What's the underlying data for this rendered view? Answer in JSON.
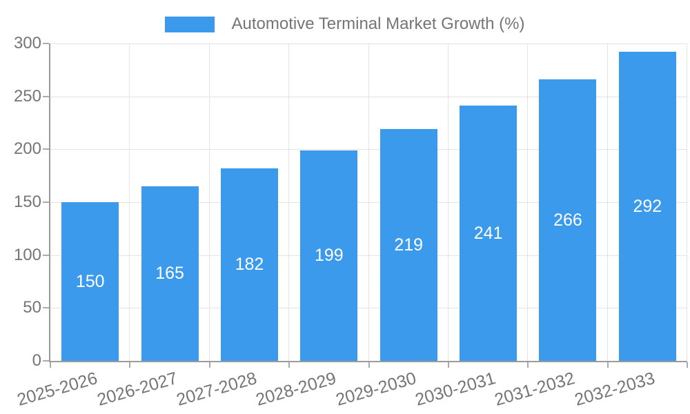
{
  "legend": {
    "label": "Automotive Terminal Market Growth (%)"
  },
  "colors": {
    "bar": "#3B9AEC",
    "axis_text": "#757575",
    "axis_line": "#9B9B9B",
    "tick_line": "#ABABAB",
    "grid_line": "#E3E3E3",
    "value_label": "#FFFFFF",
    "background": "#FFFFFF"
  },
  "chart_data": {
    "type": "bar",
    "title": "",
    "categories": [
      "2025-2026",
      "2026-2027",
      "2027-2028",
      "2028-2029",
      "2029-2030",
      "2030-2031",
      "2031-2032",
      "2032-2033"
    ],
    "series": [
      {
        "name": "Automotive Terminal Market Growth (%)",
        "values": [
          150,
          165,
          182,
          199,
          219,
          241,
          266,
          292
        ],
        "color": "#3B9AEC"
      }
    ],
    "value_labels": "inside-center",
    "xlabel": "",
    "ylabel": "",
    "ylim": [
      0,
      300
    ],
    "yticks": [
      0,
      50,
      100,
      150,
      200,
      250,
      300
    ],
    "grid": {
      "horizontal": true,
      "vertical": true
    },
    "legend_position": "top-center",
    "x_tick_rotation_deg": -16
  }
}
